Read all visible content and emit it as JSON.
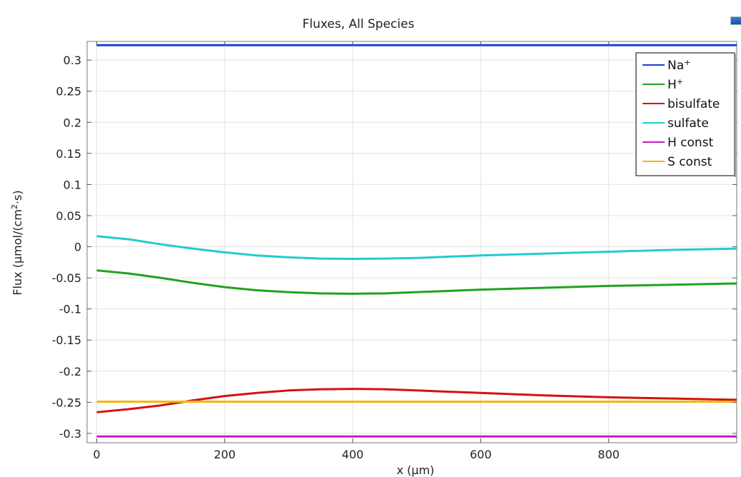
{
  "chart_data": {
    "type": "line",
    "title": "Fluxes, All Species",
    "xlabel": "x (µm)",
    "ylabel": "Flux (µmol/(cm²·s)",
    "xlim": [
      -15,
      1000
    ],
    "ylim": [
      -0.315,
      0.33
    ],
    "x_ticks": [
      0,
      200,
      400,
      600,
      800
    ],
    "y_ticks": [
      0.3,
      0.25,
      0.2,
      0.15,
      0.1,
      0.05,
      0,
      -0.05,
      -0.1,
      -0.15,
      -0.2,
      -0.25,
      -0.3
    ],
    "y_tick_labels": [
      "0.3",
      "0.25",
      "0.2",
      "0.15",
      "0.1",
      "0.05",
      "0",
      "-0.05",
      "-0.1",
      "-0.15",
      "-0.2",
      "-0.25",
      "-0.3"
    ],
    "x_tick_labels": [
      "0",
      "200",
      "400",
      "600",
      "800"
    ],
    "grid": true,
    "legend_position": "top-right",
    "series": [
      {
        "name": "Na",
        "sup": "+",
        "color": "#1f3fd8",
        "x": [
          0,
          1000
        ],
        "y": [
          0.324,
          0.324
        ]
      },
      {
        "name": "H",
        "sup": "+",
        "color": "#1ea31e",
        "x": [
          0,
          50,
          100,
          150,
          200,
          250,
          300,
          350,
          400,
          450,
          500,
          600,
          700,
          800,
          900,
          1000
        ],
        "y": [
          -0.038,
          -0.043,
          -0.05,
          -0.058,
          -0.065,
          -0.07,
          -0.073,
          -0.075,
          -0.0755,
          -0.075,
          -0.073,
          -0.069,
          -0.066,
          -0.063,
          -0.061,
          -0.059
        ]
      },
      {
        "name": "bisulfate",
        "sup": "",
        "color": "#d41111",
        "x": [
          0,
          50,
          100,
          150,
          200,
          250,
          300,
          350,
          400,
          450,
          500,
          600,
          700,
          800,
          900,
          1000
        ],
        "y": [
          -0.266,
          -0.261,
          -0.255,
          -0.247,
          -0.24,
          -0.235,
          -0.231,
          -0.229,
          -0.2285,
          -0.229,
          -0.231,
          -0.235,
          -0.239,
          -0.242,
          -0.244,
          -0.246
        ]
      },
      {
        "name": "sulfate",
        "sup": "",
        "color": "#22cccc",
        "x": [
          0,
          50,
          100,
          150,
          200,
          250,
          300,
          350,
          400,
          450,
          500,
          600,
          700,
          800,
          900,
          1000
        ],
        "y": [
          0.017,
          0.012,
          0.004,
          -0.003,
          -0.009,
          -0.014,
          -0.017,
          -0.019,
          -0.0195,
          -0.019,
          -0.018,
          -0.014,
          -0.011,
          -0.008,
          -0.005,
          -0.003
        ]
      },
      {
        "name": "H const",
        "sup": "",
        "color": "#c21ec2",
        "x": [
          0,
          1000
        ],
        "y": [
          -0.305,
          -0.305
        ]
      },
      {
        "name": "S const",
        "sup": "",
        "color": "#f2b705",
        "x": [
          0,
          1000
        ],
        "y": [
          -0.249,
          -0.249
        ]
      }
    ]
  }
}
